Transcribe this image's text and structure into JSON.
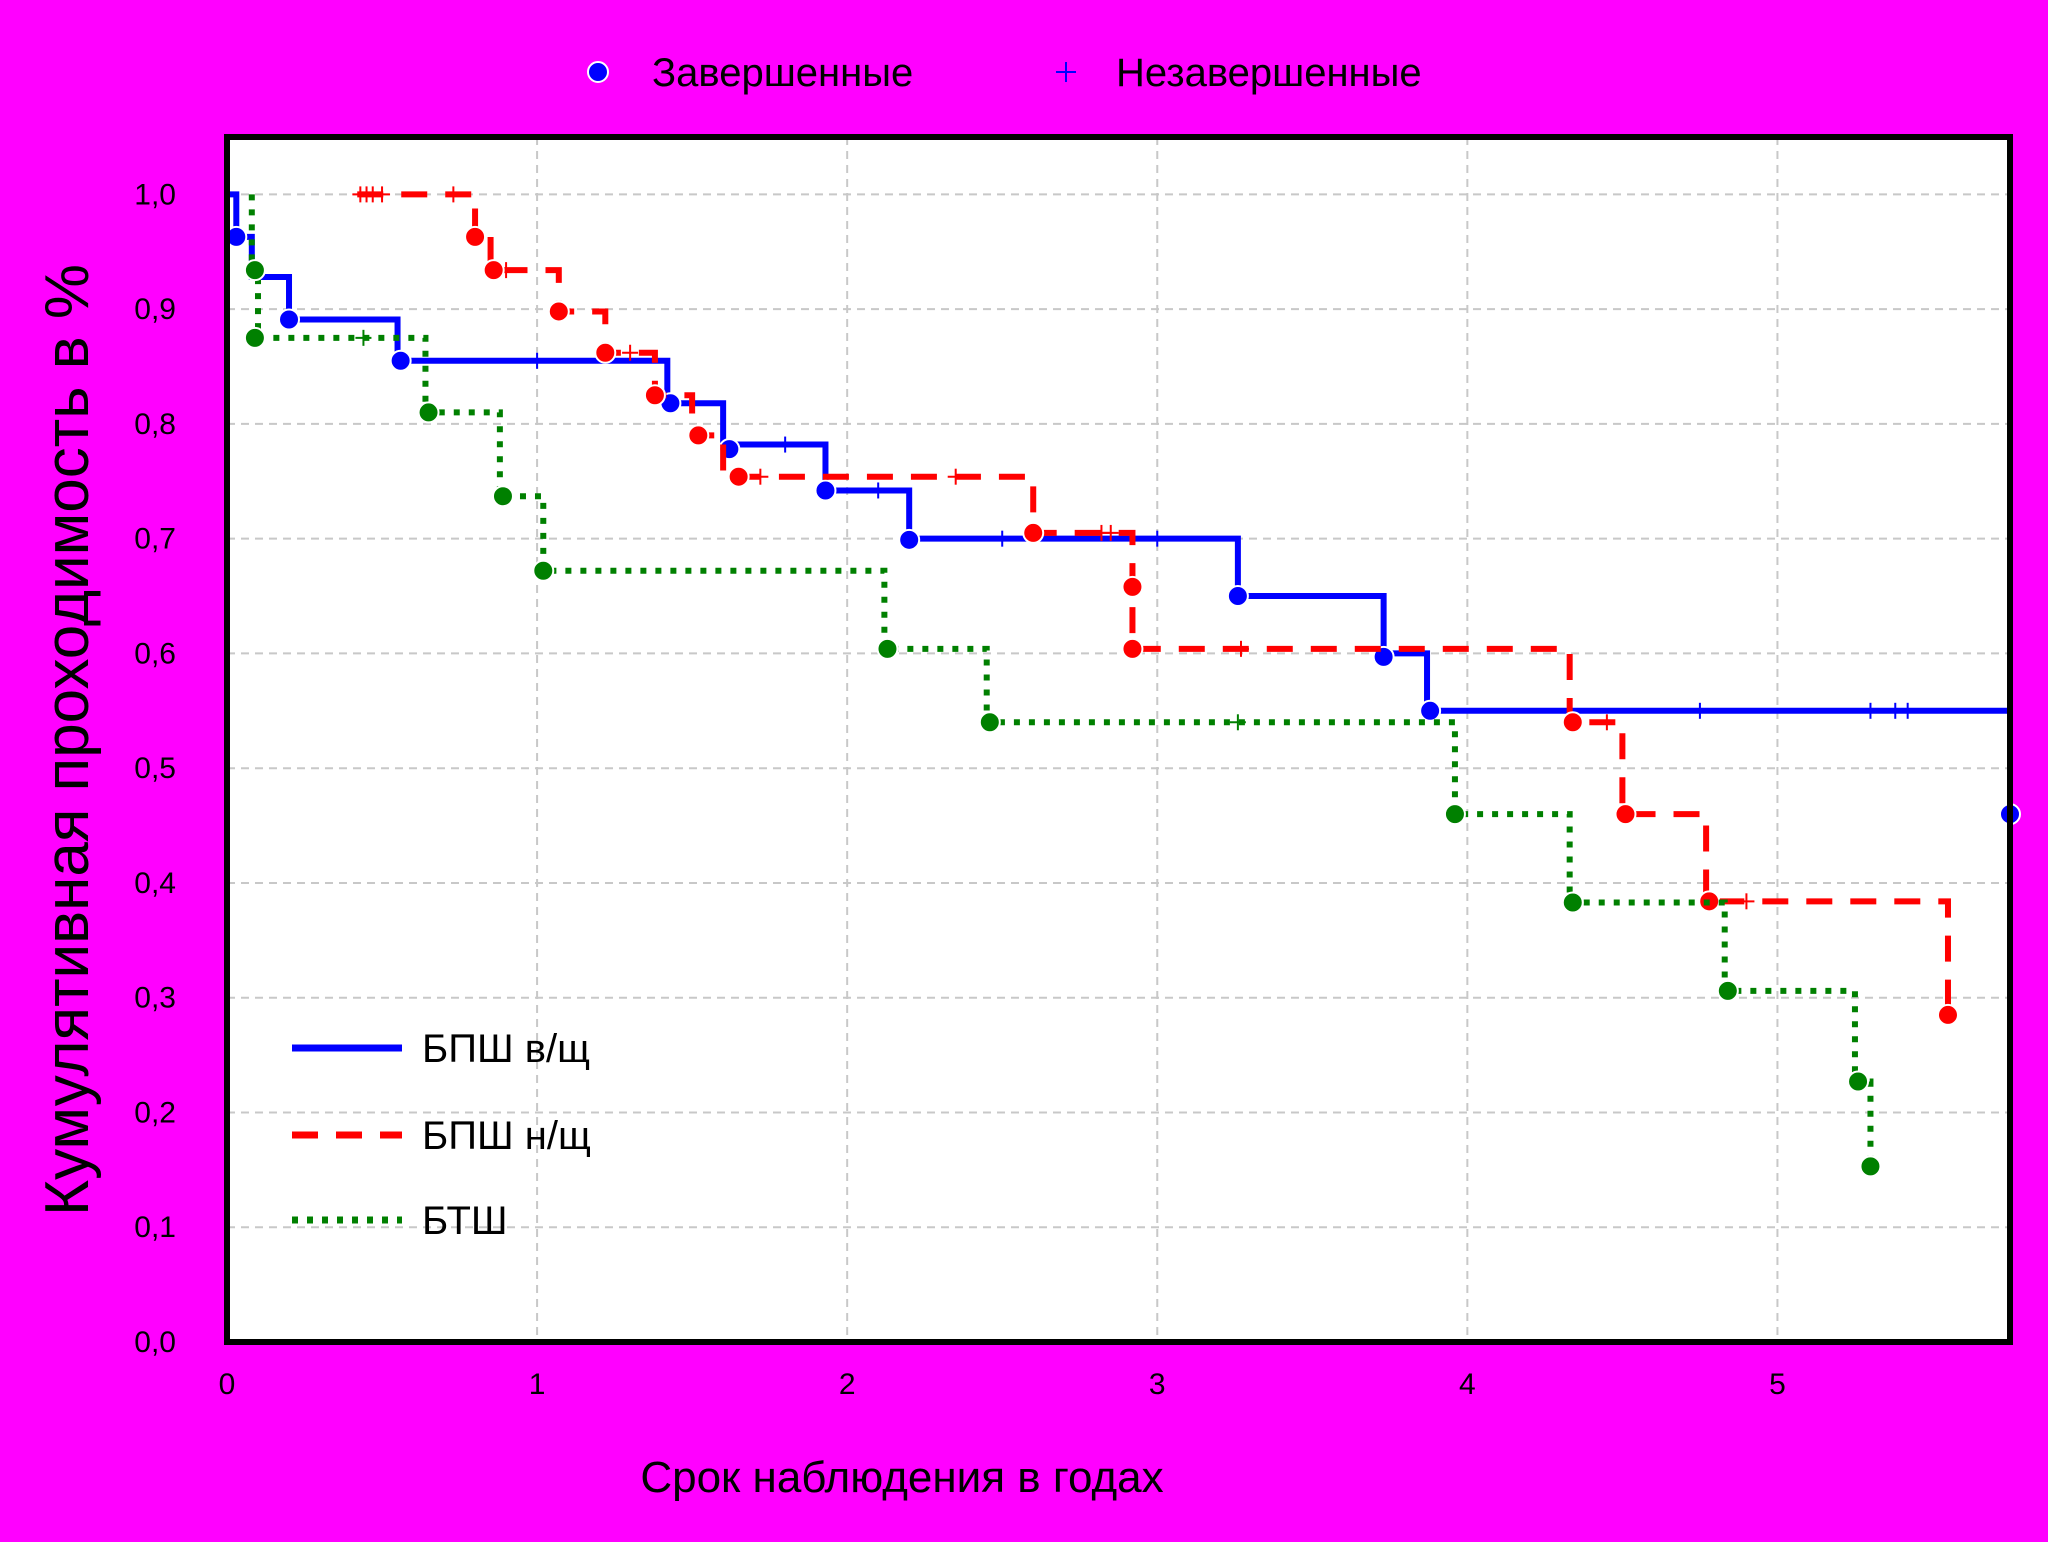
{
  "colors": {
    "background": "#ff00ff",
    "plot_background": "#ffffff",
    "grid": "#c8c8c8",
    "series_blue": "#0000ff",
    "series_red": "#ff0000",
    "series_green": "#008000"
  },
  "chart_data": {
    "type": "line",
    "subtype": "kaplan-meier step plot",
    "xlabel": "Срок наблюдения в годах",
    "ylabel": "Кумулятивная проходимость в %",
    "xlim": [
      0,
      5.75
    ],
    "ylim": [
      0.0,
      1.05
    ],
    "grid": true,
    "x_ticks": [
      "0",
      "1",
      "2",
      "3",
      "4",
      "5"
    ],
    "y_ticks": [
      "0,0",
      "0,1",
      "0,2",
      "0,3",
      "0,4",
      "0,5",
      "0,6",
      "0,7",
      "0,8",
      "0,9",
      "1,0"
    ],
    "marker_legend": {
      "position": "top",
      "completed": {
        "label": "Завершенные",
        "icon": "filled-circle-icon"
      },
      "censored": {
        "label": "Незавершенные",
        "icon": "plus-icon"
      }
    },
    "legend_position": "bottom-left",
    "series": [
      {
        "name": "БПШ в/щ",
        "style": "solid",
        "color": "#0000ff",
        "steps": [
          [
            0.0,
            1.0
          ],
          [
            0.03,
            0.963
          ],
          [
            0.08,
            0.928
          ],
          [
            0.2,
            0.891
          ],
          [
            0.55,
            0.855
          ],
          [
            1.42,
            0.818
          ],
          [
            1.6,
            0.782
          ],
          [
            1.93,
            0.742
          ],
          [
            2.2,
            0.7
          ],
          [
            3.26,
            0.65
          ],
          [
            3.73,
            0.6
          ],
          [
            3.87,
            0.55
          ],
          [
            5.75,
            0.46
          ]
        ],
        "events": [
          [
            0.03,
            0.963
          ],
          [
            0.2,
            0.891
          ],
          [
            0.56,
            0.855
          ],
          [
            1.43,
            0.818
          ],
          [
            1.62,
            0.778
          ],
          [
            1.93,
            0.742
          ],
          [
            2.2,
            0.699
          ],
          [
            3.26,
            0.65
          ],
          [
            3.73,
            0.597
          ],
          [
            3.88,
            0.55
          ],
          [
            5.75,
            0.46
          ]
        ],
        "censored": [
          [
            1.0,
            0.855
          ],
          [
            1.8,
            0.782
          ],
          [
            2.1,
            0.742
          ],
          [
            2.5,
            0.7
          ],
          [
            3.0,
            0.7
          ],
          [
            4.75,
            0.55
          ],
          [
            5.3,
            0.55
          ],
          [
            5.38,
            0.55
          ],
          [
            5.42,
            0.55
          ]
        ]
      },
      {
        "name": "БПШ н/щ",
        "style": "dashed",
        "color": "#ff0000",
        "steps": [
          [
            0.42,
            1.0
          ],
          [
            0.8,
            0.963
          ],
          [
            0.85,
            0.934
          ],
          [
            1.07,
            0.898
          ],
          [
            1.22,
            0.862
          ],
          [
            1.38,
            0.825
          ],
          [
            1.5,
            0.79
          ],
          [
            1.6,
            0.754
          ],
          [
            2.6,
            0.705
          ],
          [
            2.92,
            0.658
          ],
          [
            2.92,
            0.604
          ],
          [
            4.33,
            0.54
          ],
          [
            4.5,
            0.46
          ],
          [
            4.77,
            0.384
          ],
          [
            5.55,
            0.285
          ]
        ],
        "events": [
          [
            0.8,
            0.963
          ],
          [
            0.86,
            0.934
          ],
          [
            1.07,
            0.898
          ],
          [
            1.22,
            0.862
          ],
          [
            1.38,
            0.825
          ],
          [
            1.52,
            0.79
          ],
          [
            1.65,
            0.754
          ],
          [
            2.6,
            0.705
          ],
          [
            2.92,
            0.658
          ],
          [
            2.92,
            0.604
          ],
          [
            4.34,
            0.54
          ],
          [
            4.51,
            0.46
          ],
          [
            4.78,
            0.384
          ],
          [
            5.55,
            0.285
          ]
        ],
        "censored": [
          [
            0.43,
            1.0
          ],
          [
            0.45,
            1.0
          ],
          [
            0.47,
            1.0
          ],
          [
            0.5,
            1.0
          ],
          [
            0.73,
            1.0
          ],
          [
            0.9,
            0.934
          ],
          [
            1.3,
            0.862
          ],
          [
            1.72,
            0.754
          ],
          [
            2.35,
            0.754
          ],
          [
            2.82,
            0.705
          ],
          [
            2.85,
            0.705
          ],
          [
            3.27,
            0.604
          ],
          [
            4.45,
            0.54
          ],
          [
            4.9,
            0.384
          ]
        ]
      },
      {
        "name": "БТШ",
        "style": "dotted",
        "color": "#008000",
        "steps": [
          [
            0.08,
            1.0
          ],
          [
            0.08,
            0.934
          ],
          [
            0.1,
            0.875
          ],
          [
            0.64,
            0.81
          ],
          [
            0.88,
            0.737
          ],
          [
            1.02,
            0.672
          ],
          [
            2.12,
            0.604
          ],
          [
            2.45,
            0.54
          ],
          [
            3.96,
            0.46
          ],
          [
            4.33,
            0.383
          ],
          [
            4.83,
            0.306
          ],
          [
            5.25,
            0.227
          ],
          [
            5.3,
            0.153
          ]
        ],
        "events": [
          [
            0.09,
            0.934
          ],
          [
            0.09,
            0.875
          ],
          [
            0.65,
            0.81
          ],
          [
            0.89,
            0.737
          ],
          [
            1.02,
            0.672
          ],
          [
            2.13,
            0.604
          ],
          [
            2.46,
            0.54
          ],
          [
            3.96,
            0.46
          ],
          [
            4.34,
            0.383
          ],
          [
            4.84,
            0.306
          ],
          [
            5.26,
            0.227
          ],
          [
            5.3,
            0.153
          ]
        ],
        "censored": [
          [
            0.44,
            0.875
          ],
          [
            3.26,
            0.54
          ]
        ]
      }
    ]
  }
}
